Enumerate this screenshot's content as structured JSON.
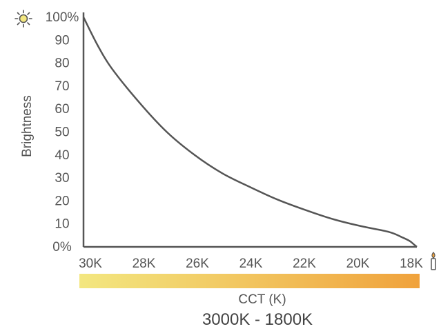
{
  "chart_data": {
    "type": "line",
    "ylabel": "Brightness",
    "xlabel": "CCT (K)",
    "caption": "3000K - 1800K",
    "x_ticks": [
      "30K",
      "28K",
      "26K",
      "24K",
      "22K",
      "20K",
      "18K"
    ],
    "y_ticks": [
      "0%",
      "10",
      "20",
      "30",
      "40",
      "50",
      "60",
      "70",
      "80",
      "90",
      "100%"
    ],
    "xlim": [
      3000,
      1800
    ],
    "ylim": [
      0,
      100
    ],
    "series": [
      {
        "x": [
          3000,
          2950,
          2900,
          2800,
          2700,
          2600,
          2500,
          2400,
          2300,
          2200,
          2100,
          2000,
          1900,
          1850,
          1825,
          1810,
          1800
        ],
        "y": [
          100,
          88,
          78,
          63,
          50,
          40,
          32,
          26,
          20.5,
          16,
          12,
          9,
          6.5,
          4,
          2.5,
          1,
          0
        ]
      }
    ],
    "gradient_colors": [
      "#f3e780",
      "#f0a23c"
    ],
    "line_color": "#555555",
    "icons": {
      "top_left": "sun-icon",
      "right": "candle-icon"
    }
  }
}
